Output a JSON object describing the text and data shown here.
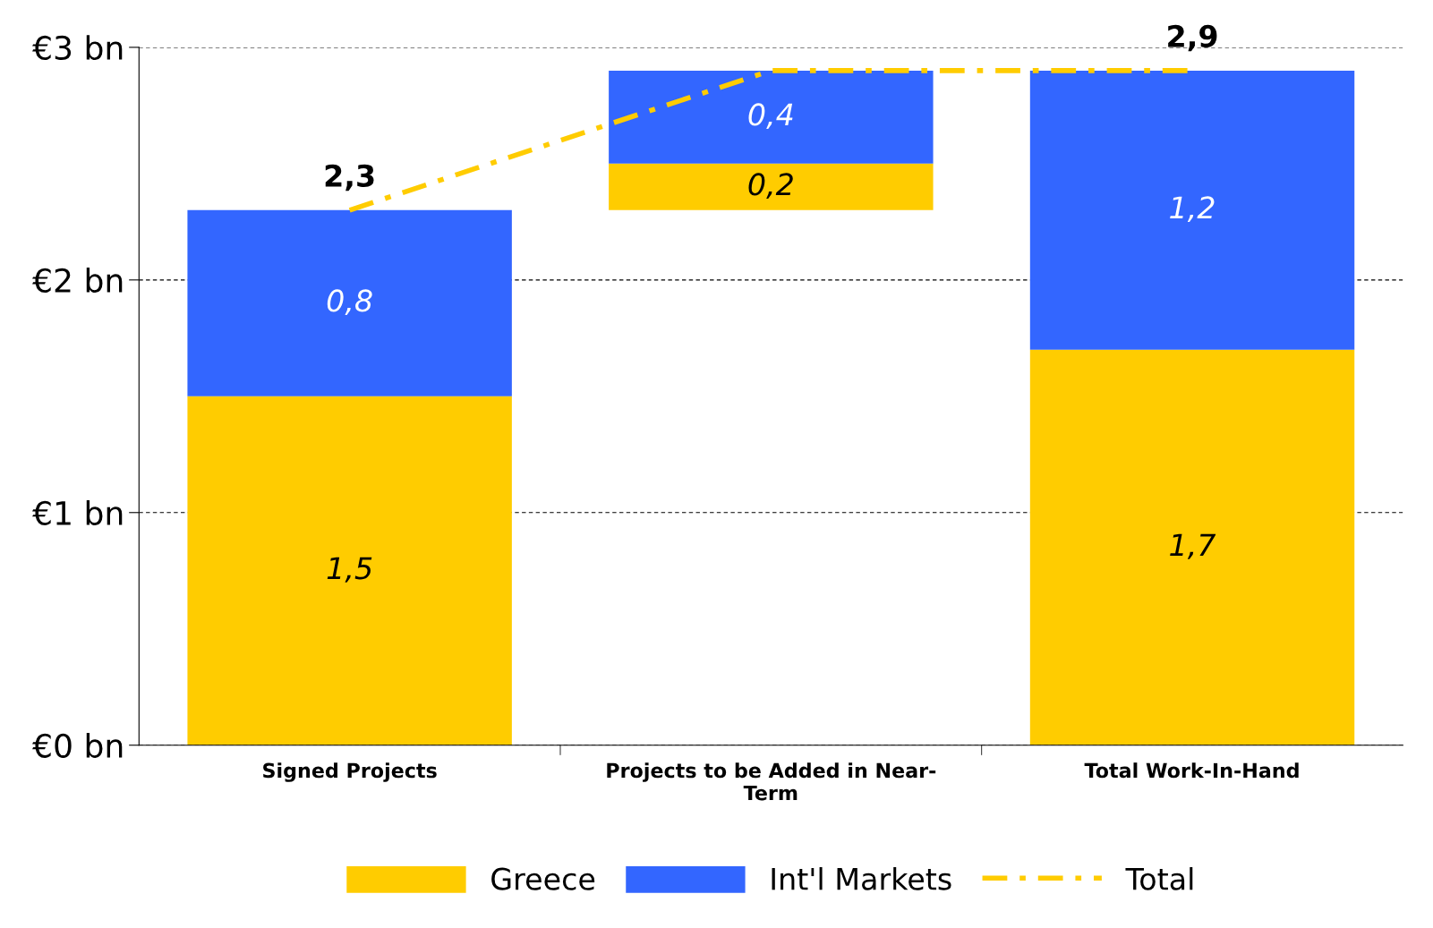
{
  "chart_data": {
    "type": "bar",
    "categories": [
      "Signed Projects",
      "Projects to be Added in Near-\nTerm",
      "Total Work-In-Hand"
    ],
    "series": [
      {
        "name": "Greece",
        "color": "#ffcc00",
        "base": [
          0,
          2.3,
          0
        ],
        "values": [
          1.5,
          0.2,
          1.7
        ],
        "value_labels": [
          "1,5",
          "0,2",
          "1,7"
        ]
      },
      {
        "name": "Int'l Markets",
        "color": "#3366ff",
        "base": [
          1.5,
          2.5,
          1.7
        ],
        "values": [
          0.8,
          0.4,
          1.2
        ],
        "value_labels": [
          "0,8",
          "0,4",
          "1,2"
        ]
      },
      {
        "name": "Total",
        "type": "line",
        "color": "#ffcc00",
        "line_style": "dashdot",
        "values": [
          2.3,
          2.9,
          2.9
        ],
        "value_labels": [
          "2,3",
          null,
          "2,9"
        ]
      }
    ],
    "ylim": [
      0,
      3
    ],
    "yticks": [
      {
        "value": 0,
        "label": "€0 bn"
      },
      {
        "value": 1,
        "label": "€1 bn"
      },
      {
        "value": 2,
        "label": "€2 bn"
      },
      {
        "value": 3,
        "label": "€3 bn"
      }
    ],
    "grid": "y",
    "legend": "bottom"
  }
}
